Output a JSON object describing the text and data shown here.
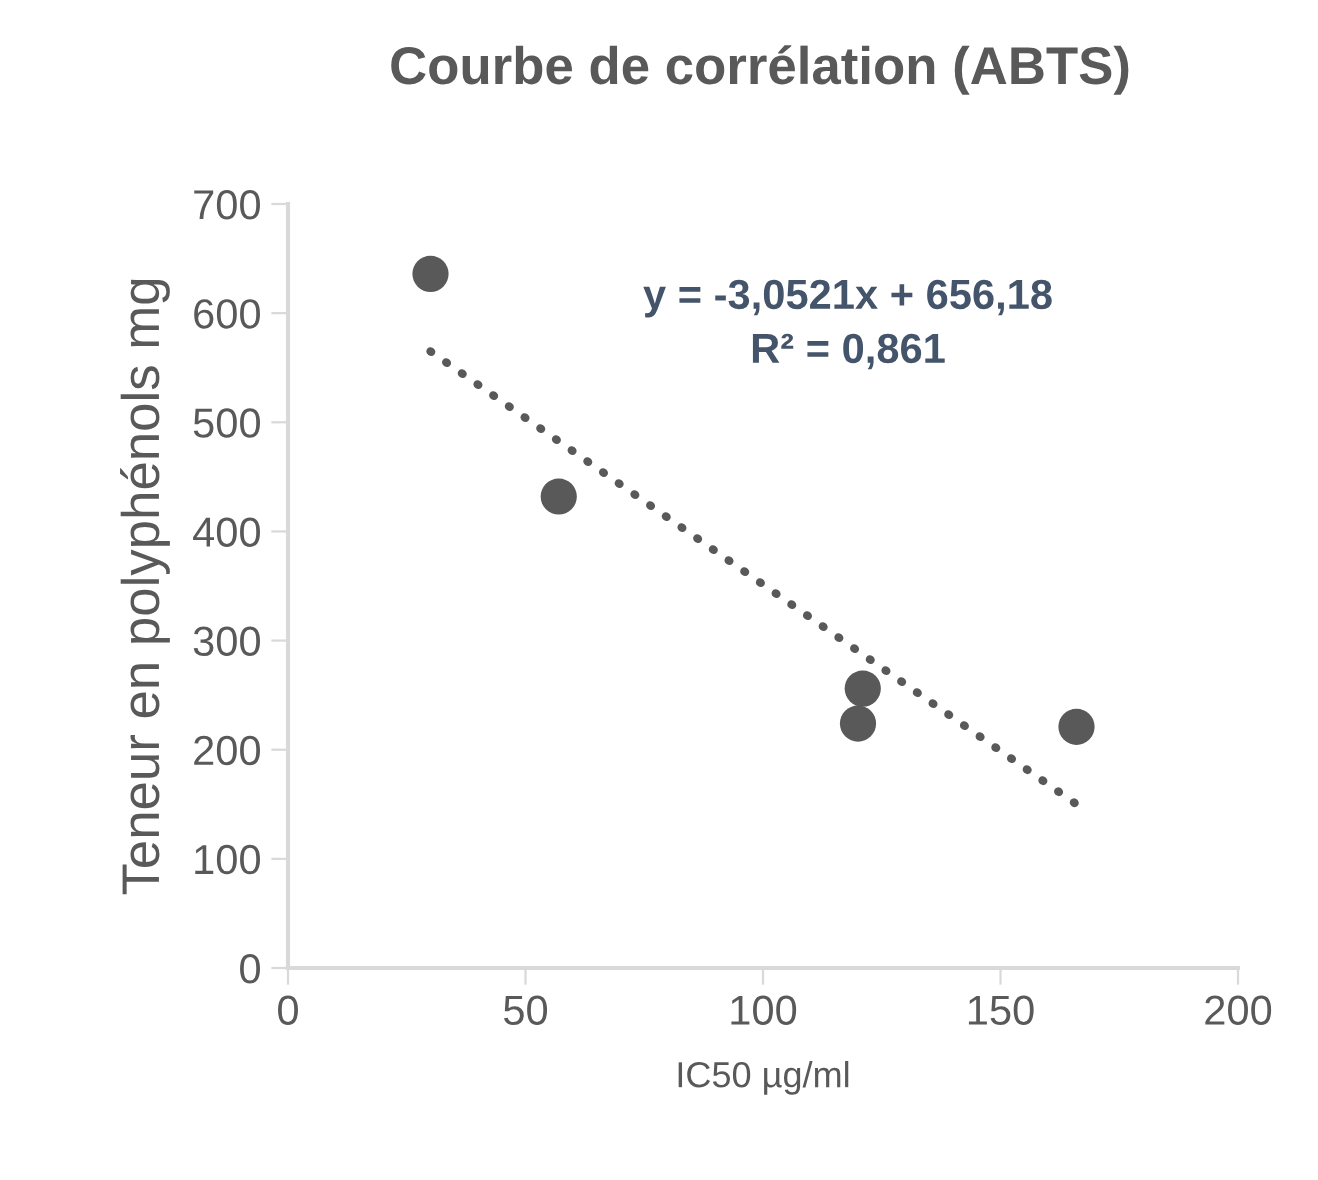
{
  "chart_data": {
    "type": "scatter",
    "title": "Courbe de corrélation (ABTS)",
    "xlabel": "IC50 µg/ml",
    "ylabel": "Teneur en polyphénols mg",
    "series": [
      {
        "color": "#595959",
        "x": [
          30,
          57,
          121,
          120,
          166
        ],
        "values": [
          636,
          432,
          256,
          224,
          221
        ],
        "marker": "circle"
      },
      {
        "type": "line",
        "color": "#595959",
        "x": [
          30,
          166
        ],
        "values": [
          565,
          150
        ],
        "line_style": "dotted",
        "marker": "none"
      }
    ],
    "annotations": [
      "y = -3,0521x + 656,18",
      "R² = 0,861"
    ],
    "xlim": [
      0,
      200
    ],
    "xticks": [
      0,
      50,
      100,
      150,
      200
    ],
    "ylim": [
      0,
      700
    ],
    "yticks": [
      0,
      100,
      200,
      300,
      400,
      500,
      600,
      700
    ],
    "grid": false,
    "legend": false
  }
}
